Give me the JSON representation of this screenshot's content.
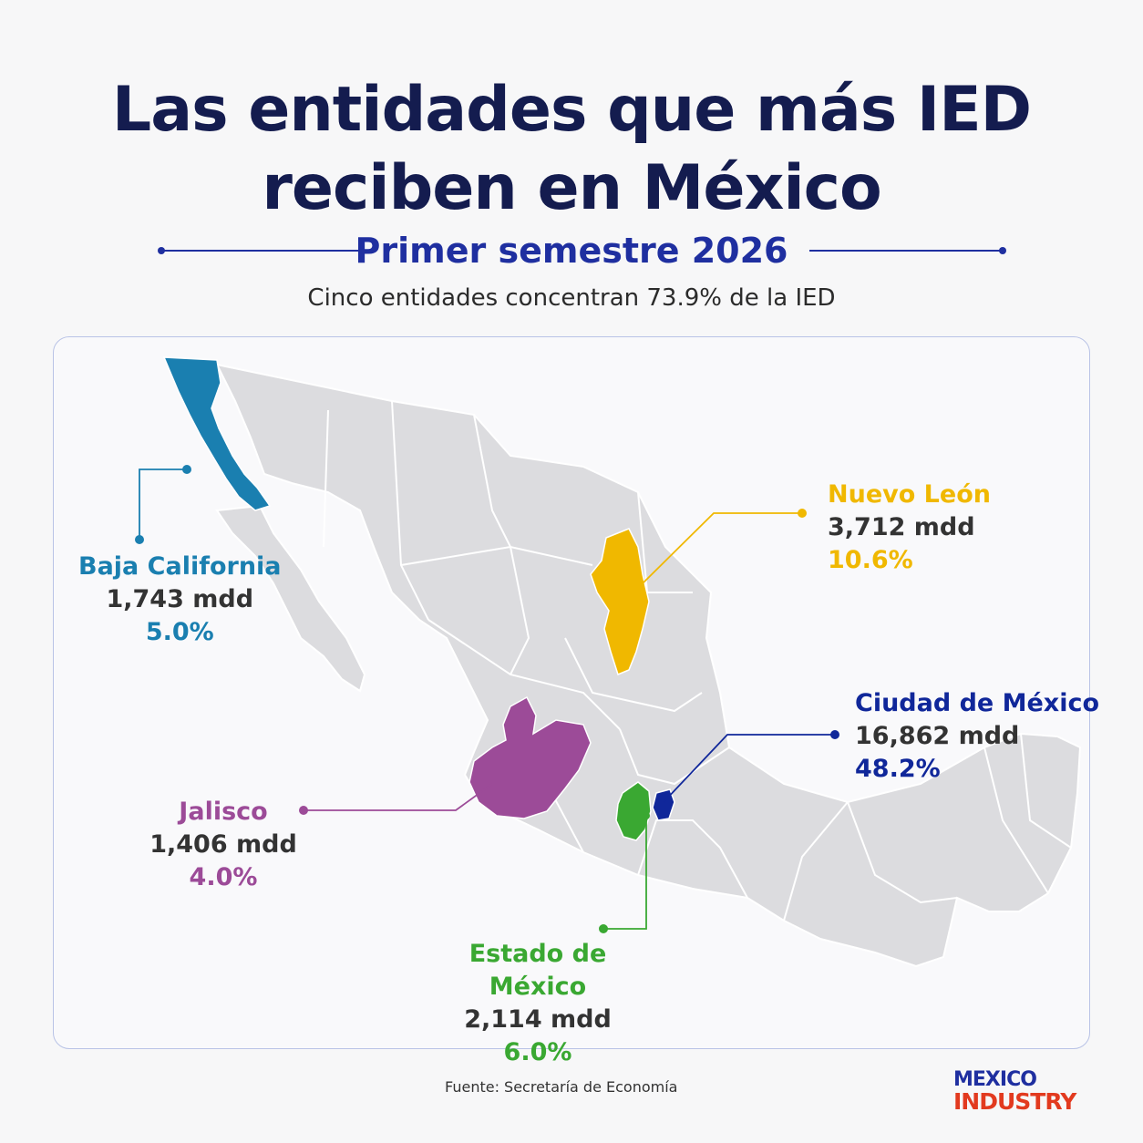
{
  "title": {
    "line1": "Las entidades que más IED",
    "line2": "reciben en México"
  },
  "subtitle": "Primer semestre 2026",
  "tagline": "Cinco entidades concentran 73.9% de la IED",
  "colors": {
    "title": "#141c4f",
    "accent": "#1f2fa0",
    "map_base": "#dcdcdf",
    "baja_california": "#1a7fb0",
    "nuevo_leon": "#f0b800",
    "ciudad_de_mexico": "#10279a",
    "jalisco": "#9c4b98",
    "estado_de_mexico": "#3aa832"
  },
  "entities": {
    "baja_california": {
      "name": "Baja California",
      "value": "1,743 mdd",
      "pct": "5.0%"
    },
    "nuevo_leon": {
      "name": "Nuevo León",
      "value": "3,712 mdd",
      "pct": "10.6%"
    },
    "ciudad_de_mexico": {
      "name": "Ciudad de México",
      "value": "16,862 mdd",
      "pct": "48.2%"
    },
    "jalisco": {
      "name": "Jalisco",
      "value": "1,406 mdd",
      "pct": "4.0%"
    },
    "estado_de_mexico": {
      "name": "Estado de México",
      "value": "2,114 mdd",
      "pct": "6.0%"
    }
  },
  "source": "Fuente: Secretaría de Economía",
  "logo": {
    "line1": "MEXICO",
    "line2": "INDUSTRY"
  }
}
